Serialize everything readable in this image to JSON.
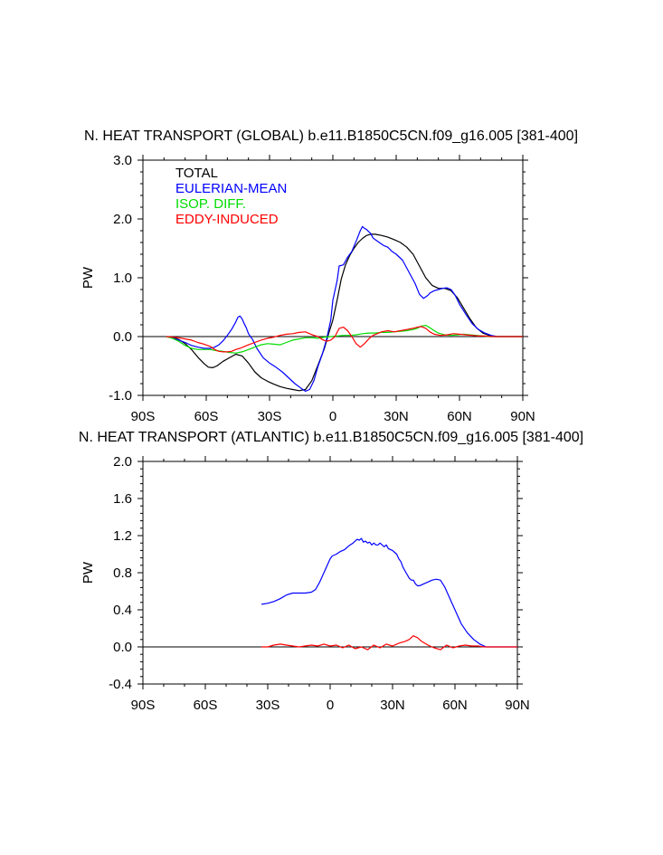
{
  "chart_data": [
    {
      "type": "line",
      "title": "N. HEAT TRANSPORT (GLOBAL) b.e11.B1850C5CN.f09_g16.005 [381-400]",
      "xlabel": "",
      "ylabel": "PW",
      "xlim": [
        -90,
        90
      ],
      "ylim": [
        -1.0,
        3.0
      ],
      "xticks": [
        -90,
        -60,
        -30,
        0,
        30,
        60,
        90
      ],
      "xtick_labels": [
        "90S",
        "60S",
        "30S",
        "0",
        "30N",
        "60N",
        "90N"
      ],
      "yticks": [
        -1.0,
        0.0,
        1.0,
        2.0,
        3.0
      ],
      "ytick_labels": [
        "-1.0",
        "0.0",
        "1.0",
        "2.0",
        "3.0"
      ],
      "zero_line": true,
      "legend": [
        "TOTAL",
        "EULERIAN-MEAN",
        "ISOP. DIFF.",
        "EDDY-INDUCED"
      ],
      "series": [
        {
          "name": "TOTAL",
          "color": "#000000",
          "x": [
            -79,
            -76,
            -73,
            -70,
            -67,
            -64,
            -61,
            -59,
            -57,
            -55,
            -52,
            -49,
            -46,
            -43,
            -40,
            -37,
            -34,
            -31,
            -28,
            -25,
            -22,
            -19,
            -16,
            -13,
            -10,
            -7,
            -4,
            -2,
            0,
            2,
            4,
            6,
            8,
            10,
            12,
            14,
            16,
            18,
            20,
            23,
            26,
            29,
            32,
            35,
            38,
            41,
            44,
            47,
            50,
            53,
            56,
            59,
            62,
            65,
            68,
            71,
            74,
            77,
            80,
            90
          ],
          "values": [
            0.0,
            -0.01,
            -0.05,
            -0.12,
            -0.22,
            -0.35,
            -0.46,
            -0.52,
            -0.53,
            -0.5,
            -0.42,
            -0.36,
            -0.3,
            -0.33,
            -0.45,
            -0.6,
            -0.7,
            -0.76,
            -0.81,
            -0.85,
            -0.88,
            -0.9,
            -0.92,
            -0.9,
            -0.75,
            -0.48,
            -0.2,
            0.05,
            0.28,
            0.62,
            0.98,
            1.22,
            1.38,
            1.5,
            1.6,
            1.67,
            1.72,
            1.74,
            1.74,
            1.72,
            1.69,
            1.65,
            1.6,
            1.52,
            1.4,
            1.2,
            1.0,
            0.87,
            0.82,
            0.82,
            0.78,
            0.66,
            0.48,
            0.3,
            0.15,
            0.06,
            0.02,
            0.0,
            0.0,
            0.0
          ]
        },
        {
          "name": "EULERIAN-MEAN",
          "color": "#0000ff",
          "x": [
            -79,
            -76,
            -73,
            -70,
            -67,
            -64,
            -61,
            -58,
            -56,
            -54,
            -52,
            -50,
            -48,
            -46,
            -45,
            -44,
            -43,
            -42,
            -41,
            -40,
            -38,
            -36,
            -33,
            -30,
            -27,
            -24,
            -21,
            -18,
            -15,
            -13,
            -11,
            -9,
            -7,
            -5,
            -3,
            -1,
            0,
            2,
            3,
            5,
            7,
            9,
            11,
            13,
            14,
            15,
            16,
            18,
            19,
            20,
            22,
            24,
            26,
            28,
            30,
            33,
            36,
            39,
            41,
            43,
            45,
            46,
            48,
            50,
            52,
            54,
            56,
            58,
            60,
            63,
            66,
            69,
            72,
            75,
            78,
            80,
            90
          ],
          "values": [
            0.0,
            -0.02,
            -0.06,
            -0.1,
            -0.15,
            -0.18,
            -0.2,
            -0.2,
            -0.18,
            -0.14,
            -0.07,
            0.02,
            0.12,
            0.25,
            0.33,
            0.35,
            0.3,
            0.22,
            0.15,
            0.05,
            -0.05,
            -0.2,
            -0.36,
            -0.45,
            -0.52,
            -0.6,
            -0.7,
            -0.8,
            -0.88,
            -0.93,
            -0.9,
            -0.75,
            -0.5,
            -0.3,
            -0.05,
            0.28,
            0.62,
            0.95,
            1.2,
            1.22,
            1.35,
            1.45,
            1.62,
            1.8,
            1.87,
            1.84,
            1.82,
            1.75,
            1.68,
            1.65,
            1.6,
            1.55,
            1.52,
            1.45,
            1.4,
            1.3,
            1.1,
            0.9,
            0.72,
            0.65,
            0.7,
            0.74,
            0.78,
            0.8,
            0.82,
            0.83,
            0.8,
            0.7,
            0.55,
            0.38,
            0.22,
            0.12,
            0.06,
            0.02,
            0.0,
            0.0,
            0.0
          ]
        },
        {
          "name": "ISOP. DIFF.",
          "color": "#00dd00",
          "x": [
            -79,
            -76,
            -73,
            -70,
            -67,
            -64,
            -61,
            -58,
            -55,
            -52,
            -49,
            -46,
            -43,
            -40,
            -37,
            -34,
            -31,
            -28,
            -25,
            -22,
            -19,
            -16,
            -13,
            -10,
            -7,
            -4,
            -1,
            2,
            5,
            8,
            11,
            14,
            17,
            20,
            23,
            26,
            29,
            32,
            35,
            38,
            40,
            42,
            44,
            46,
            48,
            50,
            53,
            56,
            59,
            62,
            65,
            68,
            71,
            74,
            77,
            80,
            90
          ],
          "values": [
            0.0,
            -0.03,
            -0.08,
            -0.15,
            -0.2,
            -0.22,
            -0.22,
            -0.22,
            -0.24,
            -0.25,
            -0.27,
            -0.28,
            -0.26,
            -0.22,
            -0.18,
            -0.14,
            -0.12,
            -0.13,
            -0.14,
            -0.1,
            -0.06,
            -0.04,
            -0.02,
            -0.02,
            -0.03,
            -0.01,
            0.0,
            0.01,
            0.02,
            0.02,
            0.03,
            0.05,
            0.06,
            0.06,
            0.07,
            0.07,
            0.08,
            0.09,
            0.1,
            0.12,
            0.14,
            0.18,
            0.19,
            0.15,
            0.1,
            0.06,
            0.03,
            0.02,
            0.03,
            0.04,
            0.03,
            0.02,
            0.01,
            0.0,
            0.0,
            0.0,
            0.0
          ]
        },
        {
          "name": "EDDY-INDUCED",
          "color": "#ff0000",
          "x": [
            -79,
            -76,
            -73,
            -70,
            -67,
            -64,
            -61,
            -58,
            -56,
            -54,
            -52,
            -50,
            -48,
            -46,
            -44,
            -42,
            -40,
            -37,
            -34,
            -31,
            -28,
            -25,
            -22,
            -19,
            -16,
            -13,
            -11,
            -9,
            -7,
            -5,
            -3,
            -1,
            1,
            3,
            5,
            7,
            9,
            11,
            13,
            15,
            17,
            19,
            21,
            23,
            26,
            29,
            32,
            35,
            38,
            40,
            42,
            44,
            46,
            48,
            51,
            54,
            57,
            60,
            63,
            66,
            69,
            72,
            75,
            78,
            80,
            90
          ],
          "values": [
            0.0,
            -0.01,
            -0.02,
            -0.04,
            -0.06,
            -0.1,
            -0.13,
            -0.17,
            -0.22,
            -0.25,
            -0.26,
            -0.26,
            -0.25,
            -0.22,
            -0.2,
            -0.17,
            -0.14,
            -0.1,
            -0.06,
            -0.03,
            -0.01,
            0.02,
            0.04,
            0.05,
            0.07,
            0.08,
            0.05,
            0.02,
            0.0,
            -0.05,
            -0.08,
            -0.06,
            0.0,
            0.14,
            0.16,
            0.1,
            0.0,
            -0.12,
            -0.18,
            -0.12,
            -0.04,
            0.02,
            0.05,
            0.08,
            0.1,
            0.08,
            0.1,
            0.12,
            0.14,
            0.16,
            0.17,
            0.14,
            0.08,
            0.04,
            0.02,
            0.03,
            0.05,
            0.04,
            0.03,
            0.02,
            0.01,
            0.01,
            0.0,
            0.0,
            0.0,
            0.0
          ]
        }
      ]
    },
    {
      "type": "line",
      "title": "N. HEAT TRANSPORT (ATLANTIC) b.e11.B1850C5CN.f09_g16.005 [381-400]",
      "xlabel": "",
      "ylabel": "PW",
      "xlim": [
        -90,
        90
      ],
      "ylim": [
        -0.4,
        2.0
      ],
      "xticks": [
        -90,
        -60,
        -30,
        0,
        30,
        60,
        90
      ],
      "xtick_labels": [
        "90S",
        "60S",
        "30S",
        "0",
        "30N",
        "60N",
        "90N"
      ],
      "yticks": [
        -0.4,
        0.0,
        0.4,
        0.8,
        1.2,
        1.6,
        2.0
      ],
      "ytick_labels": [
        "-0.4",
        "0.0",
        "0.4",
        "0.8",
        "1.2",
        "1.6",
        "2.0"
      ],
      "zero_line": true,
      "series": [
        {
          "name": "EULERIAN-MEAN",
          "color": "#0000ff",
          "x": [
            -33,
            -30,
            -27,
            -24,
            -21,
            -18,
            -15,
            -12,
            -9,
            -7,
            -5,
            -3,
            -1,
            0,
            1,
            3,
            5,
            7,
            9,
            11,
            13,
            14,
            15,
            16,
            17,
            18,
            19,
            20,
            21,
            22,
            23,
            24,
            25,
            26,
            27,
            28,
            29,
            30,
            31,
            32,
            33,
            34,
            35,
            36,
            37,
            38,
            39,
            40,
            41,
            42,
            43,
            45,
            47,
            49,
            51,
            53,
            55,
            57,
            59,
            61,
            63,
            66,
            69,
            72,
            75,
            78,
            80,
            90
          ],
          "values": [
            0.46,
            0.47,
            0.49,
            0.52,
            0.56,
            0.58,
            0.58,
            0.58,
            0.59,
            0.62,
            0.7,
            0.8,
            0.9,
            0.95,
            0.98,
            1.0,
            1.03,
            1.05,
            1.09,
            1.12,
            1.16,
            1.15,
            1.17,
            1.13,
            1.14,
            1.12,
            1.13,
            1.1,
            1.12,
            1.1,
            1.1,
            1.12,
            1.1,
            1.08,
            1.1,
            1.06,
            1.05,
            1.04,
            1.02,
            1.0,
            0.95,
            0.92,
            0.86,
            0.82,
            0.78,
            0.74,
            0.72,
            0.72,
            0.68,
            0.66,
            0.66,
            0.68,
            0.7,
            0.72,
            0.73,
            0.72,
            0.65,
            0.55,
            0.45,
            0.35,
            0.25,
            0.15,
            0.08,
            0.03,
            0.0,
            0.0,
            0.0,
            0.0
          ]
        },
        {
          "name": "EDDY-INDUCED",
          "color": "#ff0000",
          "x": [
            -33,
            -30,
            -27,
            -24,
            -21,
            -18,
            -15,
            -12,
            -9,
            -6,
            -3,
            0,
            3,
            6,
            9,
            12,
            15,
            18,
            21,
            24,
            27,
            30,
            33,
            36,
            38,
            40,
            42,
            44,
            47,
            50,
            53,
            56,
            59,
            62,
            65,
            68,
            71,
            74,
            77,
            80,
            90
          ],
          "values": [
            0.0,
            0.0,
            0.02,
            0.03,
            0.02,
            0.01,
            0.0,
            0.01,
            0.02,
            0.01,
            0.03,
            0.01,
            0.02,
            -0.01,
            0.02,
            -0.02,
            0.0,
            -0.03,
            0.02,
            -0.01,
            0.03,
            0.01,
            0.04,
            0.06,
            0.08,
            0.12,
            0.1,
            0.06,
            0.02,
            -0.01,
            -0.03,
            0.02,
            -0.01,
            0.01,
            0.02,
            0.01,
            0.01,
            0.0,
            0.0,
            0.0,
            0.0
          ]
        }
      ]
    }
  ]
}
